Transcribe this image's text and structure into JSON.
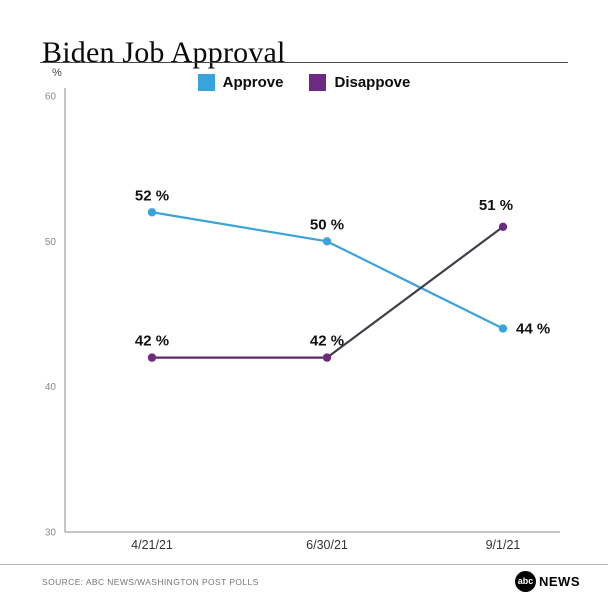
{
  "title": "Biden Job Approval",
  "chart_data": {
    "type": "line",
    "title": "Biden Job Approval",
    "xlabel": "",
    "ylabel": "%",
    "ylim": [
      30,
      60
    ],
    "yticks": [
      60,
      50,
      40,
      30
    ],
    "grid": false,
    "legend_position": "top-center",
    "categories": [
      "4/21/21",
      "6/30/21",
      "9/1/21"
    ],
    "series": [
      {
        "name": "Approve",
        "color": "#3BA3DC",
        "values": [
          52,
          50,
          44
        ],
        "point_labels": [
          "52 %",
          "50 %",
          "44 %"
        ],
        "label_offsets": [
          [
            0,
            -12,
            "middle"
          ],
          [
            0,
            -12,
            "middle"
          ],
          [
            13,
            5,
            "start"
          ]
        ]
      },
      {
        "name": "Disappove",
        "color": "#6E2A80",
        "segment_colors": [
          "#5B2A66",
          "#403E4A"
        ],
        "values": [
          42,
          42,
          51
        ],
        "point_labels": [
          "42 %",
          "42 %",
          "51 %"
        ],
        "label_offsets": [
          [
            0,
            -12,
            "middle"
          ],
          [
            0,
            -12,
            "middle"
          ],
          [
            -7,
            -17,
            "middle"
          ]
        ]
      }
    ]
  },
  "footer": {
    "source": "SOURCE: ABC NEWS/WASHINGTON POST POLLS",
    "logo_abc": "abc",
    "logo_news": "NEWS"
  }
}
